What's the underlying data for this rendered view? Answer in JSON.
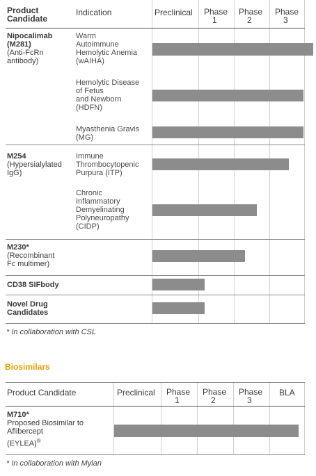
{
  "pipeline": {
    "headers": {
      "candidate_line1": "Product",
      "candidate_line2": "Candidate",
      "indication": "Indication",
      "preclinical": "Preclinical",
      "phase1_a": "Phase",
      "phase1_b": "1",
      "phase2_a": "Phase",
      "phase2_b": "2",
      "phase3_a": "Phase",
      "phase3_b": "3"
    },
    "candidates": [
      {
        "name_lines": [
          "Nipocalimab",
          "(M281)"
        ],
        "desc_lines": [
          "(Anti-FcRn",
          "antibody)"
        ]
      },
      {
        "name_lines": [
          "M254"
        ],
        "desc_lines": [
          "(Hypersialylated",
          "IgG)"
        ]
      },
      {
        "name_lines": [
          "M230*"
        ],
        "desc_lines": [
          "(Recombinant",
          "Fc multimer)"
        ]
      },
      {
        "name_lines": [
          "CD38 SIFbody"
        ],
        "desc_lines": []
      },
      {
        "name_lines": [
          "Novel Drug",
          "Candidates"
        ],
        "desc_lines": []
      }
    ],
    "indications": [
      [
        "Warm",
        "Autoimmune",
        "Hemolytic Anemia",
        "(wAIHA)"
      ],
      [
        "Hemolytic Disease",
        "of Fetus",
        "and Newborn",
        "(HDFN)"
      ],
      [
        "Myasthenia Gravis",
        "(MG)"
      ],
      [
        "Immune",
        "Thrombocytopenic",
        "Purpura (ITP)"
      ],
      [
        "Chronic",
        "Inflammatory",
        "Demyelinating",
        "Polyneuropathy",
        "(CIDP)"
      ]
    ],
    "footnote": "* In collaboration with CSL"
  },
  "biosimilars": {
    "section_title": "Biosimilars",
    "headers": {
      "candidate": "Product Candidate",
      "preclinical": "Preclinical",
      "phase1_a": "Phase",
      "phase1_b": "1",
      "phase2_a": "Phase",
      "phase2_b": "2",
      "phase3_a": "Phase",
      "phase3_b": "3",
      "bla": "BLA"
    },
    "candidate": {
      "name": "M710*",
      "desc_lines": [
        "Proposed Biosimilar to",
        "Aflibercept"
      ],
      "desc_last": "(EYLEA)",
      "desc_sup": "®"
    },
    "footnote": "* In collaboration with Mylan"
  },
  "colors": {
    "bar": "#8c8c8c",
    "section_title": "#e0a100",
    "rule": "#8a8a8a",
    "grid": "#cfcfcf"
  },
  "chart_data": [
    {
      "type": "bar",
      "categories": [
        "wAIHA",
        "HDFN",
        "MG",
        "ITP",
        "CIDP",
        "M230*",
        "CD38 SIFbody",
        "Novel Drug Candidates"
      ],
      "stages": [
        "Preclinical",
        "Phase 1",
        "Phase 2",
        "Phase 3"
      ],
      "values": [
        4.0,
        3.75,
        3.75,
        3.4,
        2.6,
        2.3,
        1.3,
        1.3
      ],
      "xlim": [
        0,
        4
      ]
    },
    {
      "type": "bar",
      "categories": [
        "M710*"
      ],
      "stages": [
        "Preclinical",
        "Phase 1",
        "Phase 2",
        "Phase 3",
        "BLA"
      ],
      "values": [
        4.85
      ],
      "xlim": [
        0,
        5
      ]
    }
  ]
}
